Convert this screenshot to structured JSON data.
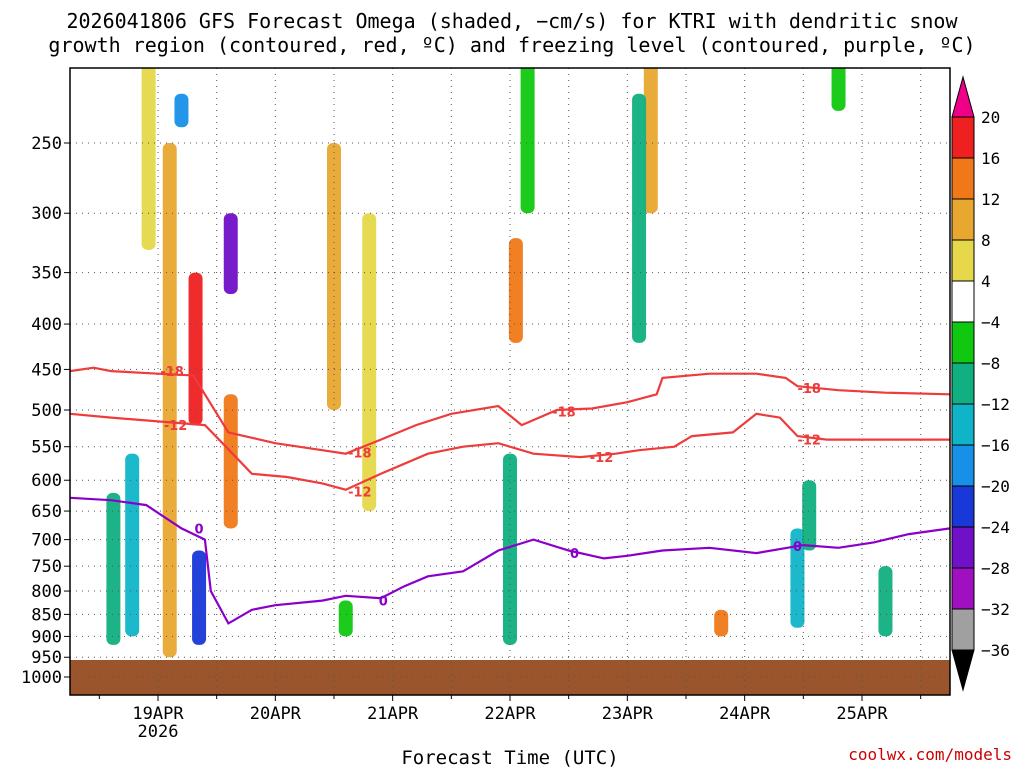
{
  "title_line1": "2026041806 GFS Forecast Omega (shaded, −cm/s) for KTRI with dendritic snow",
  "title_line2": "growth region (contoured, red, ºC) and freezing level (contoured, purple, ºC)",
  "xlabel": "Forecast Time (UTC)",
  "credit": "coolwx.com/models",
  "colors": {
    "ground": "#9b552d",
    "dgz_contour": "#ee3b3b",
    "freezing_contour": "#8b00c8",
    "grid": "#555555"
  },
  "chart_data": {
    "type": "heatmap",
    "title": "2026041806 GFS Forecast Omega (shaded, −cm/s) for KTRI with dendritic snow growth region (contoured, red, ºC) and freezing level (contoured, purple, ºC)",
    "xlabel": "Forecast Time (UTC)",
    "ylabel": "",
    "x_range": [
      "2026-04-18 06Z",
      "2026-04-25 18Z"
    ],
    "y_scale": "log",
    "y_range": [
      1050,
      200
    ],
    "y_ticks": [
      "250",
      "300",
      "350",
      "400",
      "450",
      "500",
      "550",
      "600",
      "650",
      "700",
      "750",
      "800",
      "850",
      "900",
      "950",
      "1000"
    ],
    "x_ticks": [
      {
        "label": "19APR",
        "sub": "2026",
        "day": 19
      },
      {
        "label": "20APR",
        "sub": "",
        "day": 20
      },
      {
        "label": "21APR",
        "sub": "",
        "day": 21
      },
      {
        "label": "22APR",
        "sub": "",
        "day": 22
      },
      {
        "label": "23APR",
        "sub": "",
        "day": 23
      },
      {
        "label": "24APR",
        "sub": "",
        "day": 24
      },
      {
        "label": "25APR",
        "sub": "",
        "day": 25
      }
    ],
    "grid": true,
    "colorbar": {
      "levels": [
        "20",
        "16",
        "12",
        "8",
        "4",
        "−4",
        "−8",
        "−12",
        "−16",
        "−20",
        "−24",
        "−28",
        "−32",
        "−36"
      ],
      "colors": [
        "#ee0088",
        "#ee2020",
        "#f07818",
        "#e8a830",
        "#e6d84a",
        "#ffffff",
        "#10c810",
        "#10b080",
        "#10b4c8",
        "#1890e8",
        "#1838d8",
        "#7010c8",
        "#a010c0",
        "#a0a0a0"
      ]
    },
    "shaded_regions": [
      {
        "t": 18.62,
        "p1": 620,
        "p2": 920,
        "value": -10
      },
      {
        "t": 18.78,
        "p1": 560,
        "p2": 900,
        "value": -14
      },
      {
        "t": 18.92,
        "p1": 200,
        "p2": 330,
        "value": 6
      },
      {
        "t": 19.1,
        "p1": 250,
        "p2": 950,
        "value": 8
      },
      {
        "t": 19.2,
        "p1": 220,
        "p2": 240,
        "value": -16
      },
      {
        "t": 19.32,
        "p1": 350,
        "p2": 520,
        "value": 18
      },
      {
        "t": 19.35,
        "p1": 720,
        "p2": 920,
        "value": -20
      },
      {
        "t": 19.62,
        "p1": 300,
        "p2": 370,
        "value": -24
      },
      {
        "t": 19.62,
        "p1": 480,
        "p2": 680,
        "value": 12
      },
      {
        "t": 20.5,
        "p1": 250,
        "p2": 500,
        "value": 8
      },
      {
        "t": 20.8,
        "p1": 300,
        "p2": 650,
        "value": 6
      },
      {
        "t": 20.6,
        "p1": 820,
        "p2": 900,
        "value": -6
      },
      {
        "t": 22.05,
        "p1": 320,
        "p2": 420,
        "value": 14
      },
      {
        "t": 22.0,
        "p1": 560,
        "p2": 920,
        "value": -8
      },
      {
        "t": 22.15,
        "p1": 200,
        "p2": 300,
        "value": -6
      },
      {
        "t": 23.2,
        "p1": 200,
        "p2": 300,
        "value": 10
      },
      {
        "t": 23.1,
        "p1": 220,
        "p2": 420,
        "value": -8
      },
      {
        "t": 23.8,
        "p1": 840,
        "p2": 900,
        "value": 12
      },
      {
        "t": 24.45,
        "p1": 680,
        "p2": 880,
        "value": -12
      },
      {
        "t": 24.55,
        "p1": 600,
        "p2": 720,
        "value": -10
      },
      {
        "t": 24.8,
        "p1": 200,
        "p2": 230,
        "value": -6
      },
      {
        "t": 25.2,
        "p1": 750,
        "p2": 900,
        "value": -8
      }
    ],
    "series": [
      {
        "name": "-18",
        "color": "#ee3b3b",
        "points": [
          [
            18.25,
            452
          ],
          [
            18.45,
            448
          ],
          [
            18.6,
            452
          ],
          [
            19.0,
            455
          ],
          [
            19.3,
            457
          ],
          [
            19.6,
            530
          ],
          [
            20.0,
            545
          ],
          [
            20.4,
            555
          ],
          [
            20.6,
            560
          ],
          [
            20.9,
            540
          ],
          [
            21.2,
            520
          ],
          [
            21.5,
            505
          ],
          [
            21.9,
            495
          ],
          [
            22.1,
            520
          ],
          [
            22.4,
            500
          ],
          [
            22.7,
            498
          ],
          [
            23.0,
            490
          ],
          [
            23.25,
            480
          ],
          [
            23.3,
            460
          ],
          [
            23.7,
            455
          ],
          [
            24.1,
            455
          ],
          [
            24.35,
            460
          ],
          [
            24.45,
            470
          ],
          [
            24.8,
            475
          ],
          [
            25.2,
            478
          ],
          [
            25.75,
            480
          ]
        ],
        "labels": [
          [
            19.12,
            452,
            "-18"
          ],
          [
            20.72,
            558,
            "-18"
          ],
          [
            22.46,
            502,
            "-18"
          ],
          [
            24.55,
            472,
            "-18"
          ]
        ]
      },
      {
        "name": "-12",
        "color": "#ee3b3b",
        "points": [
          [
            18.25,
            505
          ],
          [
            18.6,
            510
          ],
          [
            19.0,
            515
          ],
          [
            19.4,
            520
          ],
          [
            19.55,
            545
          ],
          [
            19.8,
            590
          ],
          [
            20.1,
            595
          ],
          [
            20.4,
            605
          ],
          [
            20.6,
            615
          ],
          [
            20.9,
            590
          ],
          [
            21.3,
            560
          ],
          [
            21.6,
            550
          ],
          [
            21.9,
            545
          ],
          [
            22.2,
            560
          ],
          [
            22.6,
            565
          ],
          [
            22.9,
            560
          ],
          [
            23.1,
            555
          ],
          [
            23.4,
            550
          ],
          [
            23.55,
            535
          ],
          [
            23.9,
            530
          ],
          [
            24.1,
            505
          ],
          [
            24.3,
            510
          ],
          [
            24.45,
            535
          ],
          [
            24.7,
            540
          ],
          [
            25.0,
            540
          ],
          [
            25.4,
            540
          ],
          [
            25.75,
            540
          ]
        ],
        "labels": [
          [
            19.15,
            520,
            "-12"
          ],
          [
            20.72,
            618,
            "-12"
          ],
          [
            22.78,
            565,
            "-12"
          ],
          [
            24.55,
            540,
            "-12"
          ]
        ]
      },
      {
        "name": "0",
        "color": "#8b00c8",
        "points": [
          [
            18.25,
            628
          ],
          [
            18.6,
            632
          ],
          [
            18.9,
            640
          ],
          [
            19.2,
            680
          ],
          [
            19.4,
            700
          ],
          [
            19.45,
            800
          ],
          [
            19.6,
            870
          ],
          [
            19.8,
            840
          ],
          [
            20.0,
            830
          ],
          [
            20.4,
            820
          ],
          [
            20.6,
            810
          ],
          [
            20.9,
            815
          ],
          [
            21.1,
            790
          ],
          [
            21.3,
            770
          ],
          [
            21.6,
            760
          ],
          [
            21.9,
            720
          ],
          [
            22.2,
            700
          ],
          [
            22.5,
            720
          ],
          [
            22.8,
            735
          ],
          [
            23.0,
            730
          ],
          [
            23.3,
            720
          ],
          [
            23.7,
            715
          ],
          [
            24.1,
            725
          ],
          [
            24.5,
            710
          ],
          [
            24.8,
            715
          ],
          [
            25.1,
            705
          ],
          [
            25.4,
            690
          ],
          [
            25.75,
            680
          ]
        ],
        "labels": [
          [
            19.35,
            680,
            "0"
          ],
          [
            20.92,
            820,
            "0"
          ],
          [
            22.55,
            725,
            "0"
          ],
          [
            24.45,
            712,
            "0"
          ]
        ]
      }
    ]
  }
}
